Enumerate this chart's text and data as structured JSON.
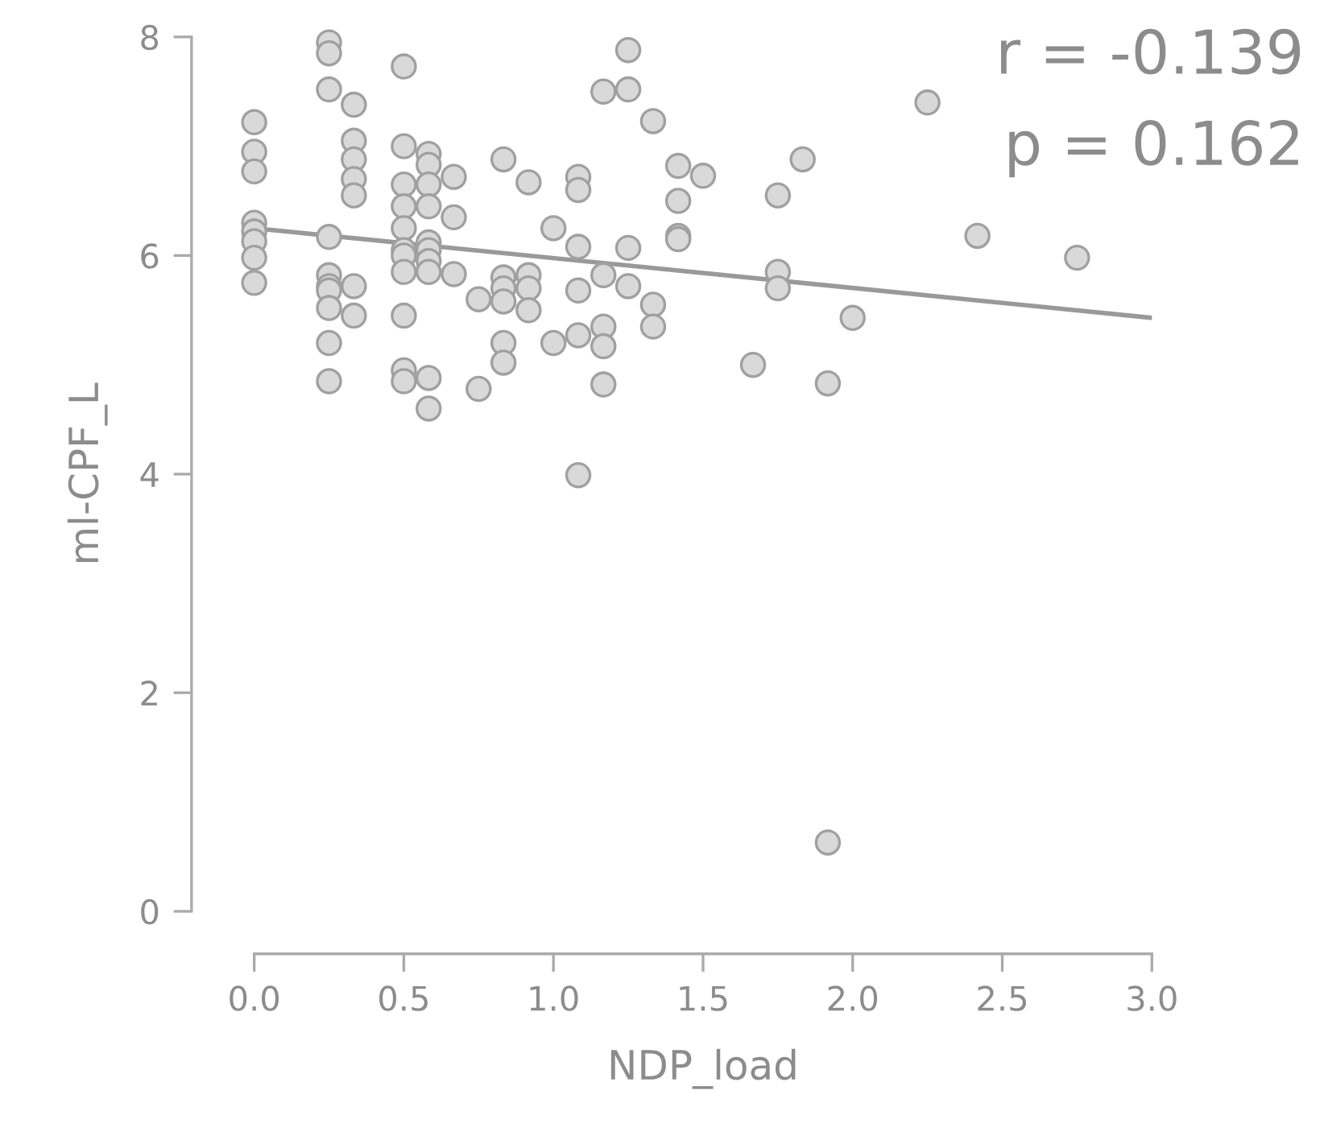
{
  "chart_data": {
    "type": "scatter",
    "xlabel": "NDP_load",
    "ylabel": "ml-CPF_L",
    "xlim": [
      0,
      3
    ],
    "ylim": [
      0,
      8
    ],
    "xticks": [
      {
        "value": 0,
        "label": "0.0"
      },
      {
        "value": 0.5,
        "label": "0.5"
      },
      {
        "value": 1,
        "label": "1.0"
      },
      {
        "value": 1.5,
        "label": "1.5"
      },
      {
        "value": 2,
        "label": "2.0"
      },
      {
        "value": 2.5,
        "label": "2.5"
      },
      {
        "value": 3,
        "label": "3.0"
      }
    ],
    "yticks": [
      0,
      2,
      4,
      6,
      8
    ],
    "grid": false,
    "marker": "circle",
    "annotations": [
      "r = -0.139",
      "p = 0.162"
    ],
    "series": [
      {
        "color": "#d9d9d9",
        "x": [
          0,
          0,
          0,
          0,
          0,
          0,
          0,
          0,
          0.25,
          0.25,
          0.25,
          0.25,
          0.25,
          0.25,
          0.25,
          0.25,
          0.25,
          0.25,
          0.333,
          0.333,
          0.333,
          0.333,
          0.333,
          0.333,
          0.333,
          0.5,
          0.5,
          0.5,
          0.5,
          0.5,
          0.5,
          0.5,
          0.5,
          0.5,
          0.5,
          0.5,
          0.583,
          0.583,
          0.583,
          0.583,
          0.583,
          0.583,
          0.583,
          0.583,
          0.583,
          0.583,
          0.667,
          0.667,
          0.667,
          0.75,
          0.75,
          0.833,
          0.833,
          0.833,
          0.833,
          0.833,
          0.833,
          0.917,
          0.917,
          0.917,
          0.917,
          1.0,
          1.0,
          1.083,
          1.083,
          1.083,
          1.083,
          1.083,
          1.083,
          1.167,
          1.167,
          1.167,
          1.167,
          1.167,
          1.25,
          1.25,
          1.25,
          1.25,
          1.333,
          1.333,
          1.333,
          1.417,
          1.417,
          1.417,
          1.417,
          1.5,
          1.667,
          1.75,
          1.75,
          1.75,
          1.833,
          1.917,
          1.917,
          2.0,
          2.25,
          2.417,
          2.75
        ],
        "values": [
          7.22,
          6.95,
          6.77,
          6.3,
          6.22,
          6.13,
          5.98,
          5.75,
          7.95,
          7.85,
          7.52,
          6.17,
          5.82,
          5.72,
          5.68,
          5.52,
          5.2,
          4.85,
          7.38,
          7.05,
          6.88,
          6.7,
          6.55,
          5.72,
          5.45,
          7.73,
          7.0,
          6.65,
          6.45,
          6.25,
          6.05,
          6.0,
          5.85,
          5.45,
          4.95,
          4.85,
          6.93,
          6.83,
          6.65,
          6.45,
          6.12,
          6.05,
          5.95,
          5.85,
          4.88,
          4.6,
          6.72,
          6.35,
          5.83,
          5.6,
          4.78,
          6.88,
          5.8,
          5.7,
          5.58,
          5.2,
          5.02,
          6.67,
          5.82,
          5.7,
          5.5,
          6.25,
          5.2,
          6.72,
          6.6,
          6.08,
          5.68,
          5.27,
          3.99,
          7.5,
          5.82,
          5.35,
          5.17,
          4.82,
          7.88,
          7.52,
          6.07,
          5.72,
          7.23,
          5.55,
          5.35,
          6.82,
          6.5,
          6.18,
          6.15,
          6.73,
          5.0,
          6.55,
          5.85,
          5.7,
          6.88,
          4.83,
          0.63,
          5.43,
          7.4,
          6.18,
          5.98
        ]
      },
      {
        "type": "line",
        "color": "#999999",
        "marker": "none",
        "x": [
          0,
          3
        ],
        "values": [
          6.25,
          5.43
        ]
      }
    ]
  }
}
